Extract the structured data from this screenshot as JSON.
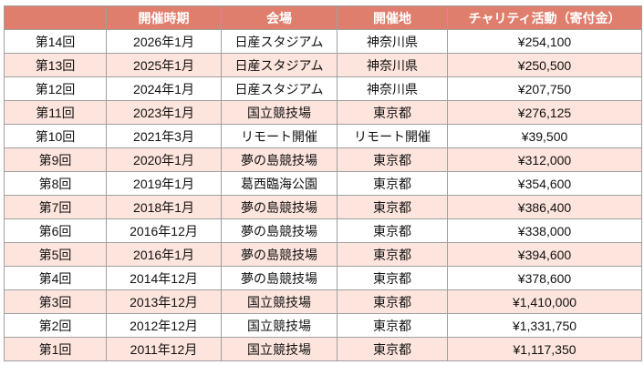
{
  "table": {
    "headers": [
      "",
      "開催時期",
      "会場",
      "開催地",
      "チャリティ活動（寄付金）"
    ],
    "rows": [
      [
        "第14回",
        "2026年1月",
        "日産スタジアム",
        "神奈川県",
        "¥254,100"
      ],
      [
        "第13回",
        "2025年1月",
        "日産スタジアム",
        "神奈川県",
        "¥250,500"
      ],
      [
        "第12回",
        "2024年1月",
        "日産スタジアム",
        "神奈川県",
        "¥207,750"
      ],
      [
        "第11回",
        "2023年1月",
        "国立競技場",
        "東京都",
        "¥276,125"
      ],
      [
        "第10回",
        "2021年3月",
        "リモート開催",
        "リモート開催",
        "¥39,500"
      ],
      [
        "第9回",
        "2020年1月",
        "夢の島競技場",
        "東京都",
        "¥312,000"
      ],
      [
        "第8回",
        "2019年1月",
        "葛西臨海公園",
        "東京都",
        "¥354,600"
      ],
      [
        "第7回",
        "2018年1月",
        "夢の島競技場",
        "東京都",
        "¥386,400"
      ],
      [
        "第6回",
        "2016年12月",
        "夢の島競技場",
        "東京都",
        "¥338,000"
      ],
      [
        "第5回",
        "2016年1月",
        "夢の島競技場",
        "東京都",
        "¥394,600"
      ],
      [
        "第4回",
        "2014年12月",
        "夢の島競技場",
        "東京都",
        "¥378,600"
      ],
      [
        "第3回",
        "2013年12月",
        "国立競技場",
        "東京都",
        "¥1,410,000"
      ],
      [
        "第2回",
        "2012年12月",
        "国立競技場",
        "東京都",
        "¥1,331,750"
      ],
      [
        "第1回",
        "2011年12月",
        "国立競技場",
        "東京都",
        "¥1,117,350"
      ]
    ]
  },
  "colors": {
    "header_bg": "#df7e6c",
    "alt_row_bg": "#fde4dc",
    "border": "#a0a0a0"
  }
}
